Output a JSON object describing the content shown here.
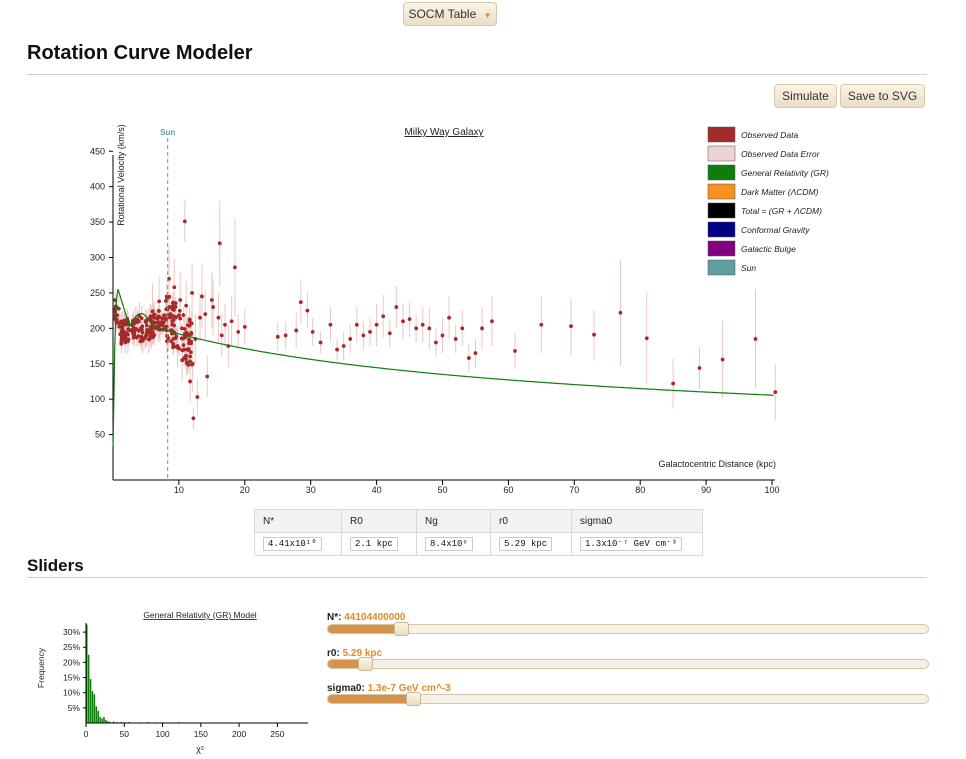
{
  "top_dropdown": {
    "label": "SOCM Table"
  },
  "title": "Rotation Curve Modeler",
  "toolbar": {
    "simulate": "Simulate",
    "save_svg": "Save to SVG"
  },
  "chart_data": [
    {
      "type": "scatter",
      "title": "Milky Way Galaxy",
      "xlabel": "Galactocentric Distance (kpc)",
      "ylabel": "Rotational Velocity (km/s)",
      "xlim": [
        0,
        100
      ],
      "ylim": [
        0,
        480
      ],
      "x_ticks": [
        10,
        20,
        30,
        40,
        50,
        60,
        70,
        80,
        90,
        100
      ],
      "y_ticks": [
        50,
        100,
        150,
        200,
        250,
        300,
        350,
        400,
        450
      ],
      "marker_label": "Sun",
      "marker_x": 8.3,
      "legend_position": "top-right",
      "legend": [
        {
          "label": "Observed Data",
          "color": "#a52a2a"
        },
        {
          "label": "Observed Data Error",
          "color": "#ecd4d4"
        },
        {
          "label": "General Relativity (GR)",
          "color": "#0d7d0d"
        },
        {
          "label": "Dark Matter (ΛCDM)",
          "color": "#f7901e"
        },
        {
          "label": "Total = (GR + ΛCDM)",
          "color": "#000000"
        },
        {
          "label": "Conformal Gravity",
          "color": "#000080"
        },
        {
          "label": "Galactic Bulge",
          "color": "#800080"
        },
        {
          "label": "Sun",
          "color": "#5f9ea0"
        }
      ],
      "series": [
        {
          "name": "Observed Data",
          "points": [
            [
              10.9,
              351,
              30
            ],
            [
              16.2,
              320,
              60
            ],
            [
              18.5,
              286,
              70
            ],
            [
              12.8,
              103,
              25
            ],
            [
              12.2,
              73,
              15
            ],
            [
              14.3,
              132,
              30
            ],
            [
              12.1,
              150,
              40
            ],
            [
              25,
              188,
              20
            ],
            [
              26.2,
              190,
              20
            ],
            [
              27.8,
              197,
              25
            ],
            [
              28.5,
              237,
              30
            ],
            [
              29.5,
              225,
              25
            ],
            [
              30.3,
              195,
              20
            ],
            [
              31.5,
              180,
              15
            ],
            [
              33,
              205,
              25
            ],
            [
              34,
              170,
              15
            ],
            [
              35,
              175,
              20
            ],
            [
              36,
              185,
              20
            ],
            [
              37,
              205,
              25
            ],
            [
              38,
              190,
              20
            ],
            [
              39,
              195,
              20
            ],
            [
              40,
              205,
              30
            ],
            [
              41,
              217,
              30
            ],
            [
              42,
              193,
              20
            ],
            [
              43,
              230,
              30
            ],
            [
              44,
              210,
              25
            ],
            [
              45,
              213,
              25
            ],
            [
              46,
              200,
              20
            ],
            [
              47,
              205,
              25
            ],
            [
              48,
              200,
              30
            ],
            [
              49,
              180,
              20
            ],
            [
              50,
              190,
              25
            ],
            [
              51,
              215,
              30
            ],
            [
              52,
              185,
              20
            ],
            [
              53,
              200,
              25
            ],
            [
              54,
              158,
              20
            ],
            [
              55,
              165,
              20
            ],
            [
              56,
              200,
              30
            ],
            [
              57.5,
              210,
              35
            ],
            [
              61,
              168,
              25
            ],
            [
              65,
              205,
              40
            ],
            [
              69.5,
              203,
              40
            ],
            [
              73,
              191,
              35
            ],
            [
              77,
              222,
              75
            ],
            [
              81,
              186,
              65
            ],
            [
              85,
              122,
              35
            ],
            [
              89,
              144,
              30
            ],
            [
              92.5,
              156,
              55
            ],
            [
              97.5,
              185,
              70
            ],
            [
              100.5,
              110,
              40
            ],
            [
              6,
              224,
              40
            ],
            [
              7,
              238,
              35
            ],
            [
              8.5,
              270,
              45
            ],
            [
              9.3,
              258,
              40
            ],
            [
              10.2,
              240,
              40
            ],
            [
              11.1,
              232,
              35
            ],
            [
              12,
              250,
              40
            ],
            [
              13.5,
              245,
              45
            ],
            [
              15,
              240,
              40
            ],
            [
              16,
              215,
              35
            ],
            [
              17,
              205,
              30
            ],
            [
              18,
              210,
              35
            ],
            [
              19,
              195,
              25
            ],
            [
              20,
              202,
              25
            ],
            [
              10.5,
              155,
              30
            ],
            [
              11.3,
              170,
              35
            ],
            [
              12.5,
              185,
              35
            ],
            [
              13.2,
              215,
              35
            ],
            [
              14,
              220,
              35
            ],
            [
              15.2,
              230,
              40
            ],
            [
              16.5,
              190,
              30
            ],
            [
              17.5,
              175,
              30
            ],
            [
              9.8,
              175,
              30
            ],
            [
              11.7,
              125,
              30
            ]
          ]
        },
        {
          "name": "General Relativity (GR)"
        }
      ]
    },
    {
      "type": "bar",
      "title": "General Relativity (GR) Model",
      "xlabel": "χ²",
      "ylabel": "Frequency",
      "xlim": [
        0,
        290
      ],
      "ylim": [
        0,
        33
      ],
      "x_ticks": [
        0,
        50,
        100,
        150,
        200,
        250
      ],
      "y_ticks": [
        "5%",
        "10%",
        "15%",
        "20%",
        "25%",
        "30%"
      ],
      "bin_width": 2.5,
      "bins_x": [
        0,
        2.5,
        5,
        7.5,
        10,
        12.5,
        15,
        17.5,
        20,
        22.5,
        25,
        27.5,
        30,
        35,
        40,
        45,
        50,
        55,
        70,
        80,
        90,
        100,
        120
      ],
      "values": [
        32.5,
        22.5,
        14.5,
        10.5,
        9.5,
        5.5,
        4.0,
        2.0,
        1.5,
        2.0,
        1.0,
        0.6,
        0.4,
        0.5,
        0.3,
        0.3,
        0.2,
        0.3,
        0.2,
        0.3,
        0.2,
        0.2,
        0.3
      ],
      "color": "#0d7d0d"
    }
  ],
  "params_table": {
    "headers": [
      "N*",
      "R0",
      "Ng",
      "r0",
      "sigma0"
    ],
    "values": [
      "4.41x10¹⁰",
      "2.1 kpc",
      "8.4x10⁹",
      "5.29 kpc",
      "1.3x10⁻⁷ GeV cm⁻³"
    ]
  },
  "sliders_title": "Sliders",
  "sliders": [
    {
      "label": "N*:",
      "value": "44104400000",
      "fraction": 0.11
    },
    {
      "label": "r0:",
      "value": "5.29 kpc",
      "fraction": 0.05
    },
    {
      "label": "sigma0:",
      "value": "1.3e-7 GeV cm^-3",
      "fraction": 0.13
    }
  ]
}
